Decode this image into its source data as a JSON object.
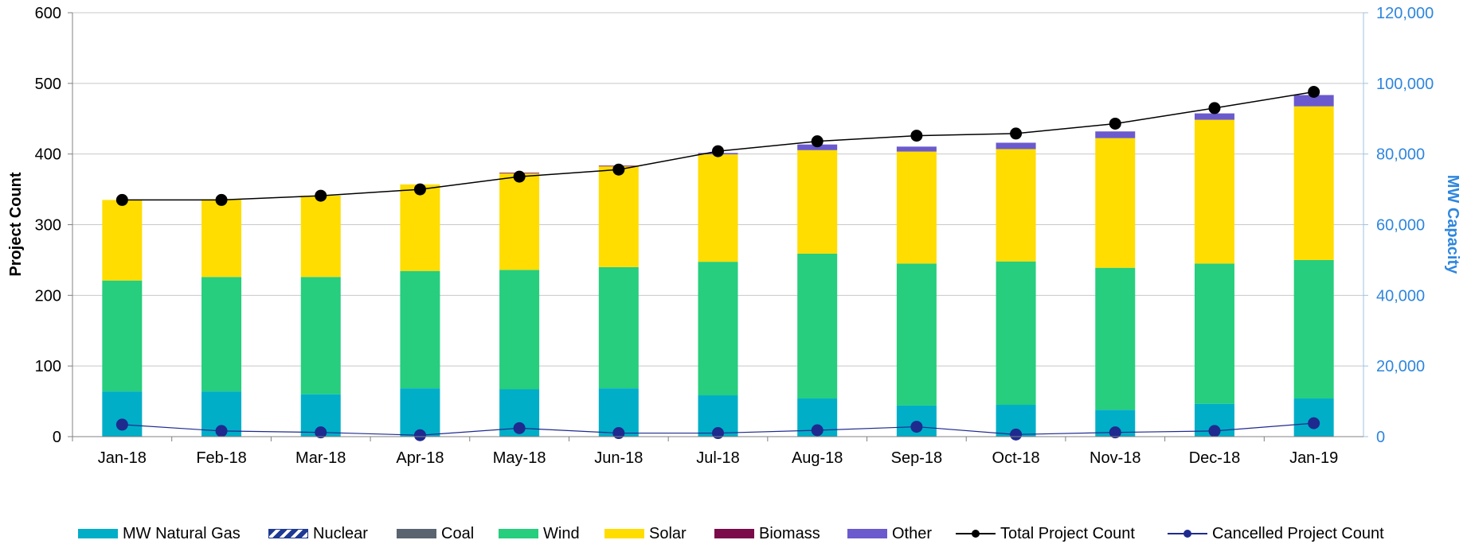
{
  "chart_data": {
    "type": "bar",
    "stacked": true,
    "categories": [
      "Jan-18",
      "Feb-18",
      "Mar-18",
      "Apr-18",
      "May-18",
      "Jun-18",
      "Jul-18",
      "Aug-18",
      "Sep-18",
      "Oct-18",
      "Nov-18",
      "Dec-18",
      "Jan-19"
    ],
    "y_left": {
      "label": "Project Count",
      "ylim": [
        0,
        600
      ],
      "ticks": [
        "0",
        "100",
        "200",
        "300",
        "400",
        "500",
        "600"
      ]
    },
    "y_right": {
      "label": "MW Capacity",
      "ylim": [
        0,
        120000
      ],
      "ticks": [
        "0",
        "20,000",
        "40,000",
        "60,000",
        "80,000",
        "100,000",
        "120,000"
      ]
    },
    "grid": true,
    "legend_position": "bottom",
    "bar_series": [
      {
        "name": "MW Natural Gas",
        "color": "#00AEC7",
        "values": [
          12800,
          12800,
          12000,
          13700,
          13400,
          13700,
          11700,
          10800,
          8800,
          9000,
          7600,
          9300,
          10800
        ]
      },
      {
        "name": "Nuclear",
        "color": "#1F3A93",
        "pattern": "hatch",
        "values": [
          0,
          0,
          0,
          0,
          0,
          0,
          0,
          0,
          0,
          0,
          0,
          0,
          0
        ]
      },
      {
        "name": "Coal",
        "color": "#5A6470",
        "values": [
          0,
          0,
          0,
          0,
          0,
          0,
          0,
          0,
          0,
          0,
          0,
          0,
          0
        ]
      },
      {
        "name": "Wind",
        "color": "#26CE7D",
        "values": [
          31400,
          32400,
          33200,
          33200,
          33800,
          34300,
          37800,
          41000,
          40200,
          40600,
          40200,
          39700,
          39200
        ]
      },
      {
        "name": "Solar",
        "color": "#FFDD00",
        "values": [
          22800,
          22000,
          23000,
          24500,
          27300,
          28500,
          30400,
          29300,
          31700,
          31800,
          36700,
          40700,
          43500
        ]
      },
      {
        "name": "Biomass",
        "color": "#7B0A4B",
        "values": [
          0,
          0,
          0,
          0,
          200,
          200,
          0,
          0,
          0,
          0,
          0,
          0,
          0
        ]
      },
      {
        "name": "Other",
        "color": "#6A5ACD",
        "values": [
          0,
          0,
          0,
          0,
          0,
          0,
          400,
          1600,
          1400,
          1800,
          1900,
          1800,
          3200
        ]
      }
    ],
    "line_series": [
      {
        "name": "Total Project Count",
        "color": "#000000",
        "axis": "left",
        "values": [
          335,
          335,
          341,
          350,
          368,
          378,
          404,
          418,
          426,
          429,
          443,
          465,
          488
        ]
      },
      {
        "name": "Cancelled Project Count",
        "color": "#1F2A8F",
        "axis": "left",
        "values": [
          17,
          8,
          6,
          2,
          12,
          5,
          5,
          9,
          14,
          3,
          6,
          8,
          19
        ]
      }
    ]
  }
}
